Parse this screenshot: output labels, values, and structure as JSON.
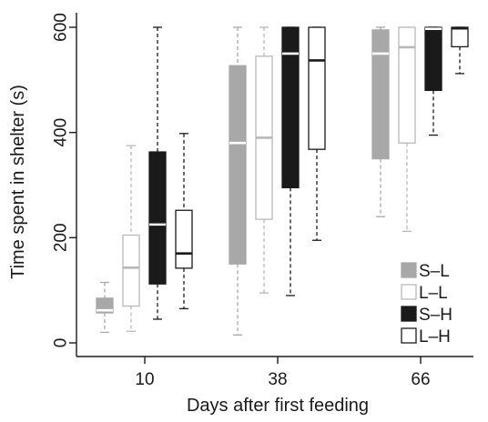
{
  "chart_data": {
    "type": "box",
    "xlabel": "Days after first feeding",
    "ylabel": "Time spent in shelter (s)",
    "ylim": [
      -30,
      620
    ],
    "yticks": [
      0,
      200,
      400,
      600
    ],
    "categories": [
      "10",
      "38",
      "66"
    ],
    "legend_position": "bottom-right",
    "series": [
      {
        "name": "S–L",
        "fill": "#a8a8a8",
        "stroke": "#a8a8a8",
        "median_color": "#ffffff",
        "whisker_color": "#a8a8a8",
        "boxes": [
          {
            "min": 20,
            "q1": 57,
            "median": 62,
            "q3": 85,
            "max": 115
          },
          {
            "min": 15,
            "q1": 150,
            "median": 380,
            "q3": 527,
            "max": 600
          },
          {
            "min": 240,
            "q1": 350,
            "median": 550,
            "q3": 595,
            "max": 600
          }
        ]
      },
      {
        "name": "L–L",
        "fill": "#ffffff",
        "stroke": "#b8b8b8",
        "median_color": "#b8b8b8",
        "whisker_color": "#b8b8b8",
        "boxes": [
          {
            "min": 22,
            "q1": 70,
            "median": 143,
            "q3": 205,
            "max": 375
          },
          {
            "min": 95,
            "q1": 235,
            "median": 390,
            "q3": 545,
            "max": 600
          },
          {
            "min": 212,
            "q1": 380,
            "median": 562,
            "q3": 600,
            "max": 600
          }
        ]
      },
      {
        "name": "S–H",
        "fill": "#1a1a1a",
        "stroke": "#1a1a1a",
        "median_color": "#ffffff",
        "whisker_color": "#1a1a1a",
        "boxes": [
          {
            "min": 45,
            "q1": 112,
            "median": 225,
            "q3": 363,
            "max": 600
          },
          {
            "min": 90,
            "q1": 295,
            "median": 550,
            "q3": 600,
            "max": 600
          },
          {
            "min": 395,
            "q1": 480,
            "median": 597,
            "q3": 600,
            "max": 600
          }
        ]
      },
      {
        "name": "L–H",
        "fill": "#ffffff",
        "stroke": "#1a1a1a",
        "median_color": "#1a1a1a",
        "whisker_color": "#1a1a1a",
        "boxes": [
          {
            "min": 65,
            "q1": 142,
            "median": 170,
            "q3": 252,
            "max": 398
          },
          {
            "min": 195,
            "q1": 368,
            "median": 537,
            "q3": 600,
            "max": 600
          },
          {
            "min": 512,
            "q1": 563,
            "median": 598,
            "q3": 600,
            "max": 600
          }
        ]
      }
    ]
  }
}
